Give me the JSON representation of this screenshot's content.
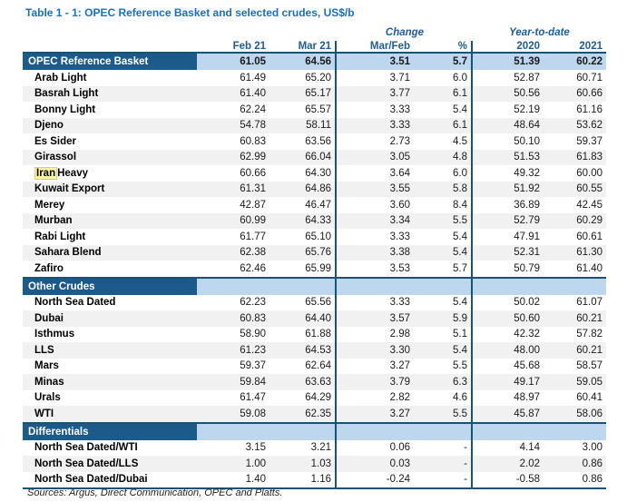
{
  "title": "Table 1 - 1: OPEC Reference Basket and selected crudes, US$/b",
  "footer": {
    "sources": "Sources:  Argus, Direct Communication, OPEC and Platts."
  },
  "colors": {
    "dark_blue_section_bg": "#1C5A8C",
    "light_blue_band": "#BDD7EE",
    "border_line": "#1A5276",
    "header_text_blue": "#1F5C99",
    "title_blue": "#1A6FBF",
    "row_stripe_gray": "#F1F1F1",
    "highlight_yellow": "#FCF6A3"
  },
  "table": {
    "group_headers": [
      "Change",
      "Year-to-date"
    ],
    "column_headers": [
      "Feb 21",
      "Mar 21",
      "Mar/Feb",
      "%",
      "2020",
      "2021"
    ],
    "summary_row": {
      "label": "OPEC Reference Basket",
      "values": [
        "61.05",
        "64.56",
        "3.51",
        "5.7",
        "51.39",
        "60.22"
      ]
    },
    "sections": [
      {
        "header": null,
        "rows": [
          {
            "label": "Arab Light",
            "values": [
              "61.49",
              "65.20",
              "3.71",
              "6.0",
              "52.87",
              "60.71"
            ]
          },
          {
            "label": "Basrah Light",
            "values": [
              "61.40",
              "65.17",
              "3.77",
              "6.1",
              "50.56",
              "60.66"
            ]
          },
          {
            "label": "Bonny Light",
            "values": [
              "62.24",
              "65.57",
              "3.33",
              "5.4",
              "52.19",
              "61.16"
            ]
          },
          {
            "label": "Djeno",
            "values": [
              "54.78",
              "58.11",
              "3.33",
              "6.1",
              "48.64",
              "53.62"
            ]
          },
          {
            "label": "Es Sider",
            "values": [
              "60.83",
              "63.56",
              "2.73",
              "4.5",
              "50.10",
              "59.37"
            ]
          },
          {
            "label": "Girassol",
            "values": [
              "62.99",
              "66.04",
              "3.05",
              "4.8",
              "51.53",
              "61.83"
            ]
          },
          {
            "label": "Iran Heavy",
            "highlight": "Iran",
            "values": [
              "60.66",
              "64.30",
              "3.64",
              "6.0",
              "49.32",
              "60.00"
            ]
          },
          {
            "label": "Kuwait Export",
            "values": [
              "61.31",
              "64.86",
              "3.55",
              "5.8",
              "51.92",
              "60.55"
            ]
          },
          {
            "label": "Merey",
            "values": [
              "42.87",
              "46.47",
              "3.60",
              "8.4",
              "36.89",
              "42.45"
            ]
          },
          {
            "label": "Murban",
            "values": [
              "60.99",
              "64.33",
              "3.34",
              "5.5",
              "52.79",
              "60.29"
            ]
          },
          {
            "label": "Rabi Light",
            "values": [
              "61.77",
              "65.10",
              "3.33",
              "5.4",
              "47.91",
              "60.61"
            ]
          },
          {
            "label": "Sahara Blend",
            "values": [
              "62.38",
              "65.76",
              "3.38",
              "5.4",
              "52.31",
              "61.30"
            ]
          },
          {
            "label": "Zafiro",
            "values": [
              "62.46",
              "65.99",
              "3.53",
              "5.7",
              "50.79",
              "61.40"
            ]
          }
        ]
      },
      {
        "header": "Other Crudes",
        "rows": [
          {
            "label": "North Sea Dated",
            "values": [
              "62.23",
              "65.56",
              "3.33",
              "5.4",
              "50.02",
              "61.07"
            ]
          },
          {
            "label": "Dubai",
            "values": [
              "60.83",
              "64.40",
              "3.57",
              "5.9",
              "50.60",
              "60.21"
            ]
          },
          {
            "label": "Isthmus",
            "values": [
              "58.90",
              "61.88",
              "2.98",
              "5.1",
              "42.32",
              "57.82"
            ]
          },
          {
            "label": "LLS",
            "values": [
              "61.23",
              "64.53",
              "3.30",
              "5.4",
              "48.00",
              "60.21"
            ]
          },
          {
            "label": "Mars",
            "values": [
              "59.37",
              "62.64",
              "3.27",
              "5.5",
              "45.68",
              "58.57"
            ]
          },
          {
            "label": "Minas",
            "values": [
              "59.84",
              "63.63",
              "3.79",
              "6.3",
              "49.17",
              "59.05"
            ]
          },
          {
            "label": "Urals",
            "values": [
              "61.47",
              "64.29",
              "2.82",
              "4.6",
              "48.97",
              "60.41"
            ]
          },
          {
            "label": "WTI",
            "values": [
              "59.08",
              "62.35",
              "3.27",
              "5.5",
              "45.87",
              "58.06"
            ]
          }
        ]
      },
      {
        "header": "Differentials",
        "rows": [
          {
            "label": "North Sea Dated/WTI",
            "values": [
              "3.15",
              "3.21",
              "0.06",
              "-",
              "4.14",
              "3.00"
            ]
          },
          {
            "label": "North Sea Dated/LLS",
            "values": [
              "1.00",
              "1.03",
              "0.03",
              "-",
              "2.02",
              "0.86"
            ]
          },
          {
            "label": "North Sea Dated/Dubai",
            "values": [
              "1.40",
              "1.16",
              "-0.24",
              "-",
              "-0.58",
              "0.86"
            ]
          }
        ]
      }
    ]
  }
}
